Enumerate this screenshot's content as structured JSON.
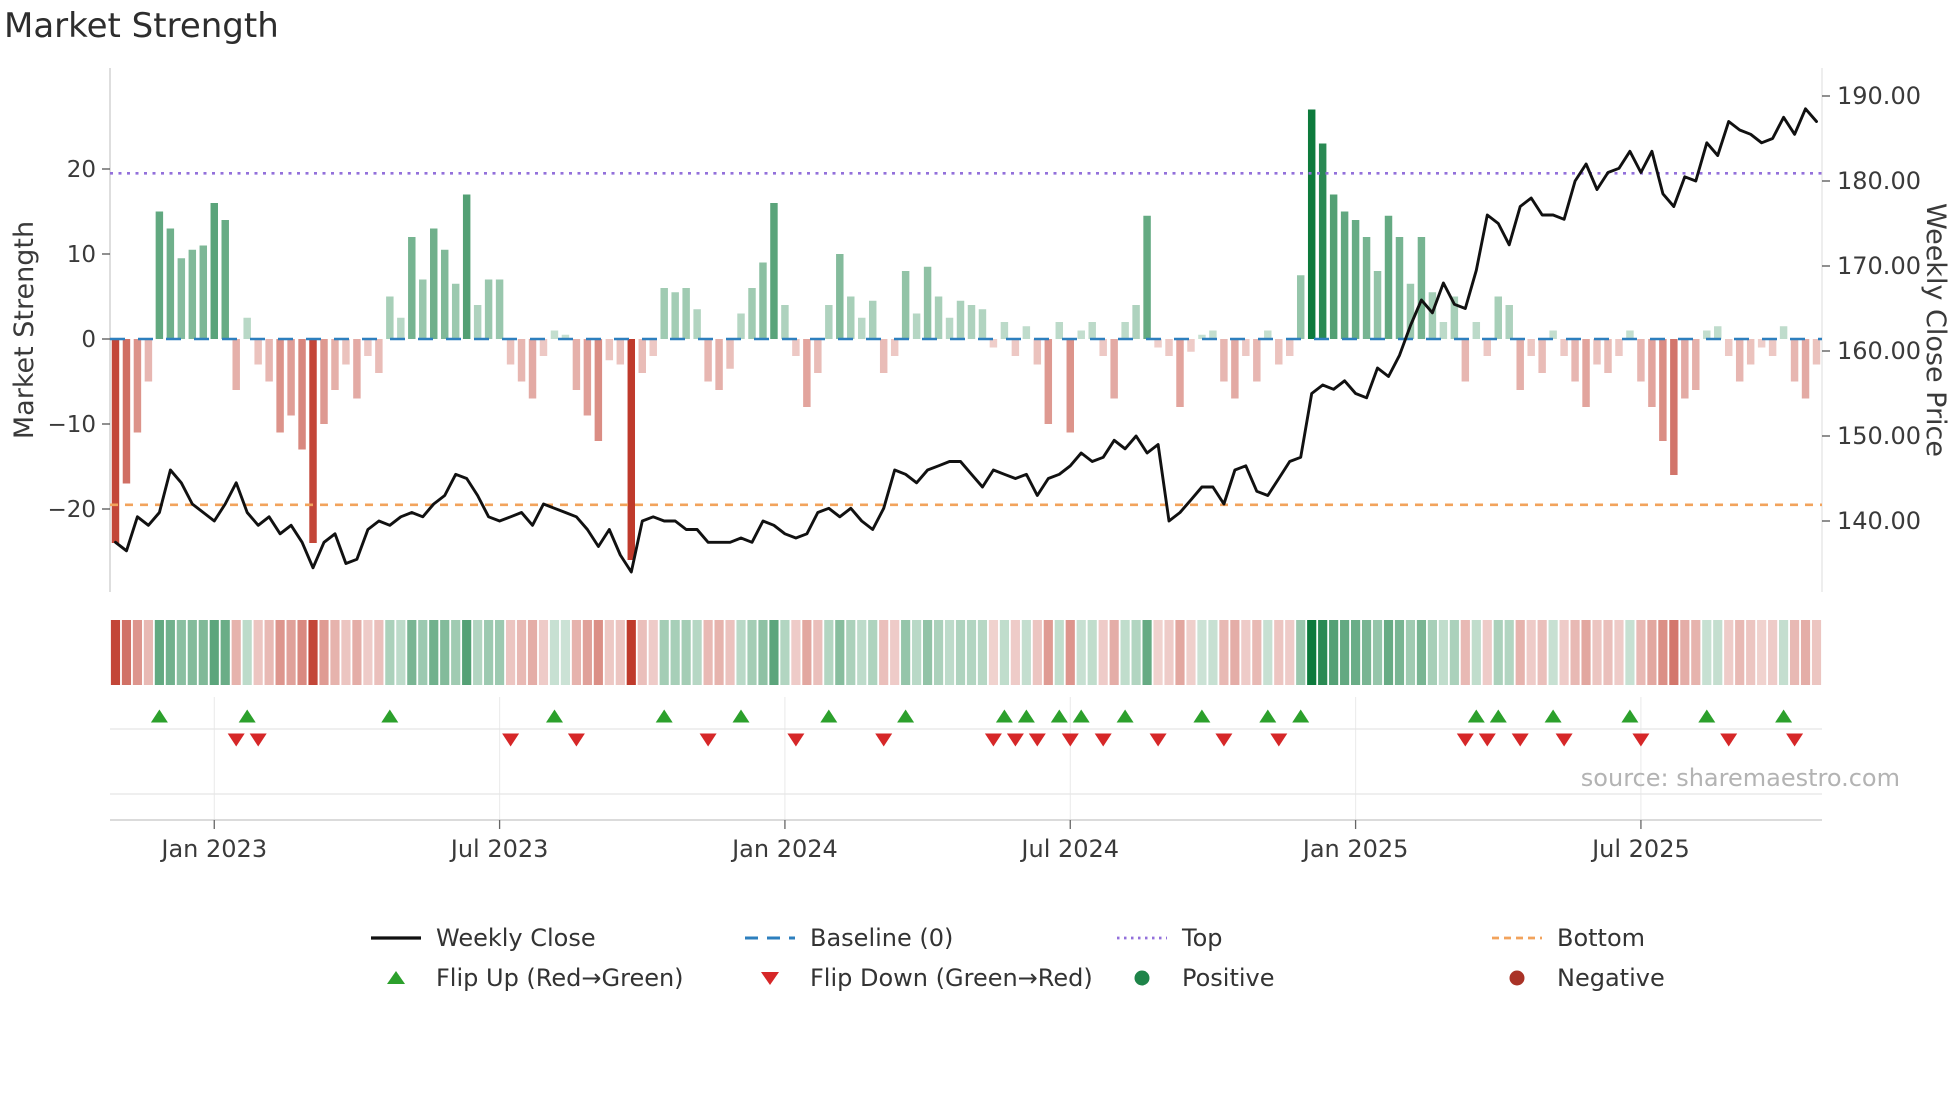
{
  "title": "Market Strength",
  "source": "source: sharemaestro.com",
  "axes": {
    "left_label": "Market Strength",
    "right_label": "Weekly Close Price",
    "left_ticks": [
      "20",
      "10",
      "0",
      "−10",
      "−20"
    ],
    "right_ticks": [
      "190.00",
      "180.00",
      "170.00",
      "160.00",
      "150.00",
      "140.00"
    ],
    "x_ticks": [
      "Jan 2023",
      "Jul 2023",
      "Jan 2024",
      "Jul 2024",
      "Jan 2025",
      "Jul 2025"
    ]
  },
  "legend": {
    "weekly_close": "Weekly Close",
    "baseline": "Baseline (0)",
    "top": "Top",
    "bottom": "Bottom",
    "flip_up": "Flip Up (Red→Green)",
    "flip_down": "Flip Down (Green→Red)",
    "positive": "Positive",
    "negative": "Negative"
  },
  "colors": {
    "positive_bar": "#0d7a3c",
    "negative_bar": "#bf3a2b",
    "line": "#111111",
    "baseline": "#2d7fbe",
    "top": "#9370db",
    "bottom": "#f2a35c",
    "flip_up": "#2ca02c",
    "flip_down": "#d62728",
    "positive_dot": "#1e8449",
    "negative_dot": "#a93226",
    "source_text": "#b3b3b3"
  },
  "chart_data": {
    "type": "bar+line",
    "x_unit": "week",
    "n_weeks": 156,
    "x_tick_weeks": [
      9,
      35,
      61,
      87,
      113,
      139
    ],
    "left_tick_values": [
      20,
      10,
      0,
      -10,
      -20
    ],
    "right_tick_values": [
      190,
      180,
      170,
      160,
      150,
      140
    ],
    "baseline": 0,
    "top_level": 19.5,
    "bottom_level": -19.5,
    "left_ylim": [
      -29,
      31
    ],
    "right_ylim": [
      132,
      192
    ],
    "series": [
      {
        "name": "Market Strength",
        "kind": "bar",
        "axis": "left",
        "values": [
          -24,
          -17,
          -11,
          -5,
          15,
          13,
          9.5,
          10.5,
          11,
          16,
          14,
          -6,
          2.5,
          -3,
          -5,
          -11,
          -9,
          -13,
          -24,
          -10,
          -6,
          -3,
          -7,
          -2,
          -4,
          5,
          2.5,
          12,
          7,
          13,
          10.5,
          6.5,
          17,
          4,
          7,
          7,
          -3,
          -5,
          -7,
          -2,
          1,
          0.5,
          -6,
          -9,
          -12,
          -2.5,
          -3,
          -26,
          -4,
          -2,
          6,
          5.5,
          6,
          3.5,
          -5,
          -6,
          -3.5,
          3,
          6,
          9,
          16,
          4,
          -2,
          -8,
          -4,
          4,
          10,
          5,
          2.5,
          4.5,
          -4,
          -2,
          8,
          3,
          8.5,
          5,
          2.5,
          4.5,
          4,
          3.5,
          -1,
          2,
          -2,
          1.5,
          -3,
          -10,
          2,
          -11,
          1,
          2,
          -2,
          -7,
          2,
          4,
          14.5,
          -1,
          -2,
          -8,
          -1.5,
          0.5,
          1,
          -5,
          -7,
          -2,
          -5,
          1,
          -3,
          -2,
          7.5,
          27,
          23,
          17,
          15,
          14,
          12,
          8,
          14.5,
          12,
          6.5,
          12,
          5.5,
          2,
          5,
          -5,
          2,
          -2,
          5,
          4,
          -6,
          -2,
          -4,
          1,
          -2,
          -5,
          -8,
          -3,
          -4,
          -2,
          1,
          -5,
          -8,
          -12,
          -16,
          -7,
          -6,
          1,
          1.5,
          -2,
          -5,
          -3,
          -1,
          -2,
          1.5,
          -5,
          -7,
          -3
        ]
      },
      {
        "name": "Weekly Close",
        "kind": "line",
        "axis": "right",
        "values": [
          137.5,
          136.5,
          140.5,
          139.5,
          141,
          146,
          144.5,
          142,
          141,
          140,
          142,
          144.5,
          141,
          139.5,
          140.5,
          138.5,
          139.5,
          137.5,
          134.5,
          137.5,
          138.5,
          135,
          135.5,
          139,
          140,
          139.5,
          140.5,
          141,
          140.5,
          142,
          143,
          145.5,
          145,
          143,
          140.5,
          140,
          140.5,
          141,
          139.5,
          142,
          141.5,
          141,
          140.5,
          139,
          137,
          139,
          136,
          134,
          140,
          140.5,
          140,
          140,
          139,
          139,
          137.5,
          137.5,
          137.5,
          138,
          137.5,
          140,
          139.5,
          138.5,
          138,
          138.5,
          141,
          141.5,
          140.5,
          141.5,
          140,
          139,
          141.5,
          146,
          145.5,
          144.5,
          146,
          146.5,
          147,
          147,
          145.5,
          144,
          146,
          145.5,
          145,
          145.5,
          143,
          145,
          145.5,
          146.5,
          148,
          147,
          147.5,
          149.5,
          148.5,
          150,
          148,
          149,
          140,
          141,
          142.5,
          144,
          144,
          142,
          146,
          146.5,
          143.5,
          143,
          145,
          147,
          147.5,
          155,
          156,
          155.5,
          156.5,
          155,
          154.5,
          158,
          157,
          159.5,
          163,
          166,
          164.5,
          168,
          165.5,
          165,
          169.5,
          176,
          175,
          172.5,
          177,
          178,
          176,
          176,
          175.5,
          180,
          182,
          179,
          181,
          181.5,
          183.5,
          181,
          183.5,
          178.5,
          177,
          180.5,
          180,
          184.5,
          183,
          187,
          186,
          185.5,
          184.5,
          185,
          187.5,
          185.5,
          188.5,
          187
        ]
      }
    ],
    "flip_up_weeks": [
      4,
      12,
      25,
      40,
      50,
      57,
      65,
      72,
      81,
      83,
      86,
      88,
      92,
      99,
      105,
      108,
      124,
      126,
      131,
      138,
      145,
      152
    ],
    "flip_down_weeks": [
      11,
      13,
      36,
      42,
      54,
      62,
      70,
      80,
      82,
      84,
      87,
      90,
      95,
      101,
      106,
      123,
      125,
      128,
      132,
      139,
      147,
      153
    ]
  }
}
